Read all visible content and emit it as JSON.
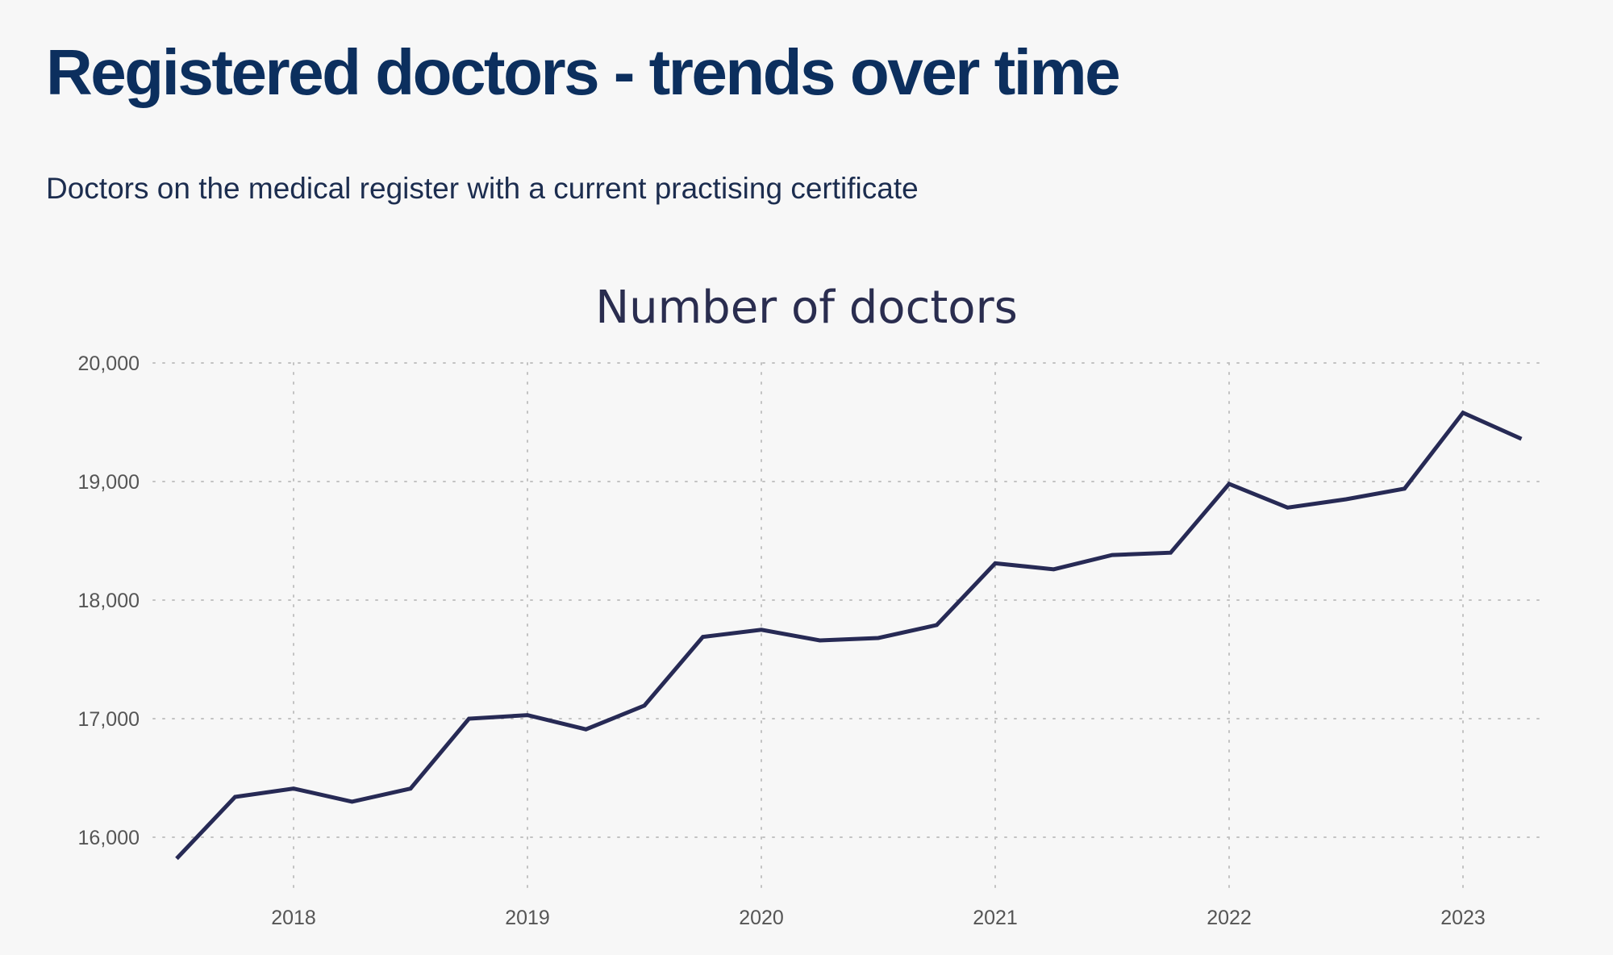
{
  "header": {
    "title": "Registered doctors - trends over time",
    "subtitle": "Doctors on the medical register with a current practising certificate"
  },
  "colors": {
    "background": "#f7f7f7",
    "title": "#0c2f5e",
    "line": "#272a55",
    "grid": "#c2c2c2"
  },
  "chart_data": {
    "type": "line",
    "title": "Number of doctors",
    "xlabel": "",
    "ylabel": "",
    "x_ticks": [
      2018,
      2019,
      2020,
      2021,
      2022,
      2023
    ],
    "y_ticks": [
      16000,
      17000,
      18000,
      19000,
      20000
    ],
    "y_tick_labels": [
      "16,000",
      "17,000",
      "18,000",
      "19,000",
      "20,000"
    ],
    "x_tick_labels": [
      "2018",
      "2019",
      "2020",
      "2021",
      "2022",
      "2023"
    ],
    "xlim": [
      2017.5,
      2023.3
    ],
    "ylim": [
      15600,
      20000
    ],
    "grid": true,
    "series": [
      {
        "name": "Number of doctors",
        "x": [
          2017.5,
          2017.75,
          2018.0,
          2018.25,
          2018.5,
          2018.75,
          2019.0,
          2019.25,
          2019.5,
          2019.75,
          2020.0,
          2020.25,
          2020.5,
          2020.75,
          2021.0,
          2021.25,
          2021.5,
          2021.75,
          2022.0,
          2022.25,
          2022.5,
          2022.75,
          2023.0,
          2023.25
        ],
        "values": [
          15820,
          16340,
          16410,
          16300,
          16410,
          17000,
          17030,
          16910,
          17110,
          17690,
          17750,
          17660,
          17680,
          17790,
          18310,
          18260,
          18380,
          18400,
          18980,
          18780,
          18850,
          18940,
          19580,
          19360
        ]
      }
    ]
  }
}
